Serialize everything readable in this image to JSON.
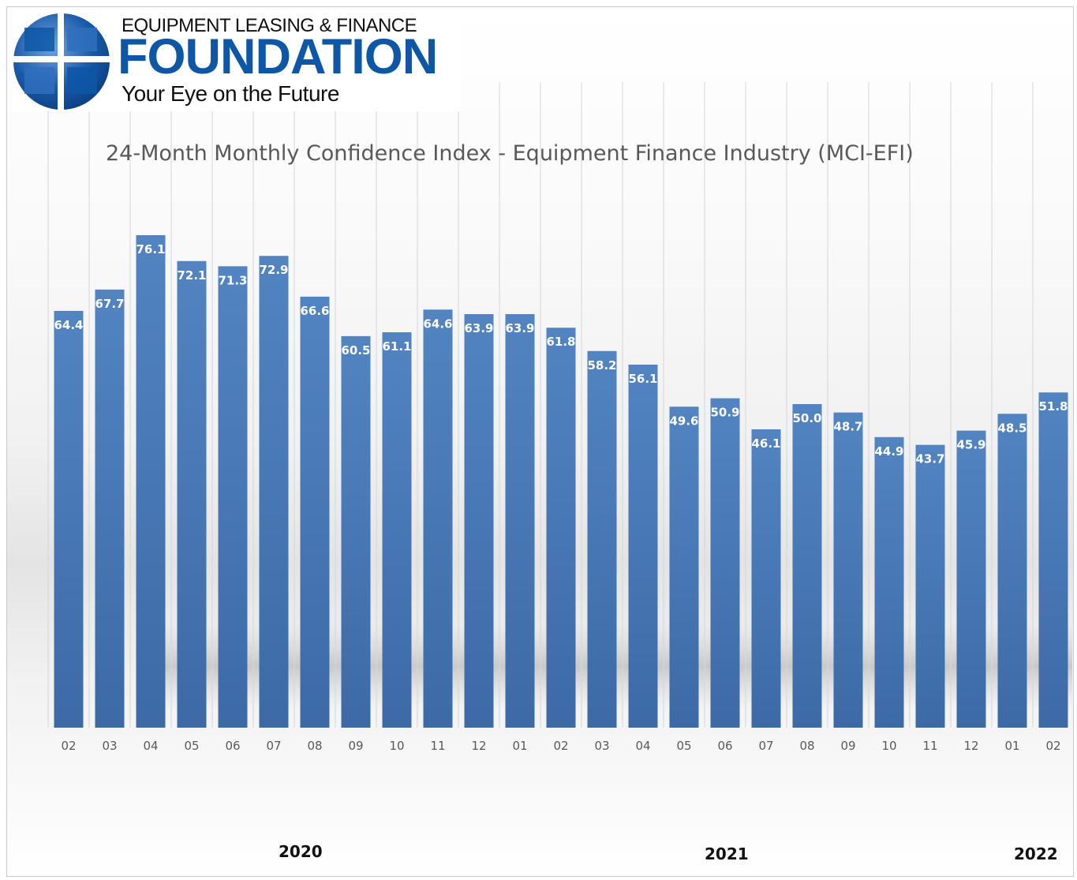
{
  "logo": {
    "line1": "EQUIPMENT LEASING & FINANCE",
    "line2": "FOUNDATION",
    "line3": "Your Eye on the Future"
  },
  "colors": {
    "bar": "#4f81bd",
    "bar_dark": "#3b6aa6",
    "logo_blue": "#0d57a6",
    "label_text": "#ffffff",
    "axis_text": "#595959"
  },
  "chart_data": {
    "type": "bar",
    "title": "24-Month Monthly Confidence Index - Equipment Finance Industry (MCI-EFI)",
    "categories": [
      "02",
      "03",
      "04",
      "05",
      "06",
      "07",
      "08",
      "09",
      "10",
      "11",
      "12",
      "01",
      "02",
      "03",
      "04",
      "05",
      "06",
      "07",
      "08",
      "09",
      "10",
      "11",
      "12",
      "01",
      "02"
    ],
    "values": [
      64.4,
      67.7,
      76.1,
      72.1,
      71.3,
      72.9,
      66.6,
      60.5,
      61.1,
      64.6,
      63.9,
      63.9,
      61.8,
      58.2,
      56.1,
      49.6,
      50.9,
      46.1,
      50.0,
      48.7,
      44.9,
      43.7,
      45.9,
      48.5,
      51.8
    ],
    "value_labels": [
      "64.4",
      "67.7",
      "76.1",
      "72.1",
      "71.3",
      "72.9",
      "66.6",
      "60.5",
      "61.1",
      "64.6",
      "63.9",
      "63.9",
      "61.8",
      "58.2",
      "56.1",
      "49.6",
      "50.9",
      "46.1",
      "50.0",
      "48.7",
      "44.9",
      "43.7",
      "45.9",
      "48.5",
      "51.8"
    ],
    "year_labels": [
      "2020",
      "2021",
      "2022"
    ],
    "grid": "vertical",
    "legend": "none"
  }
}
